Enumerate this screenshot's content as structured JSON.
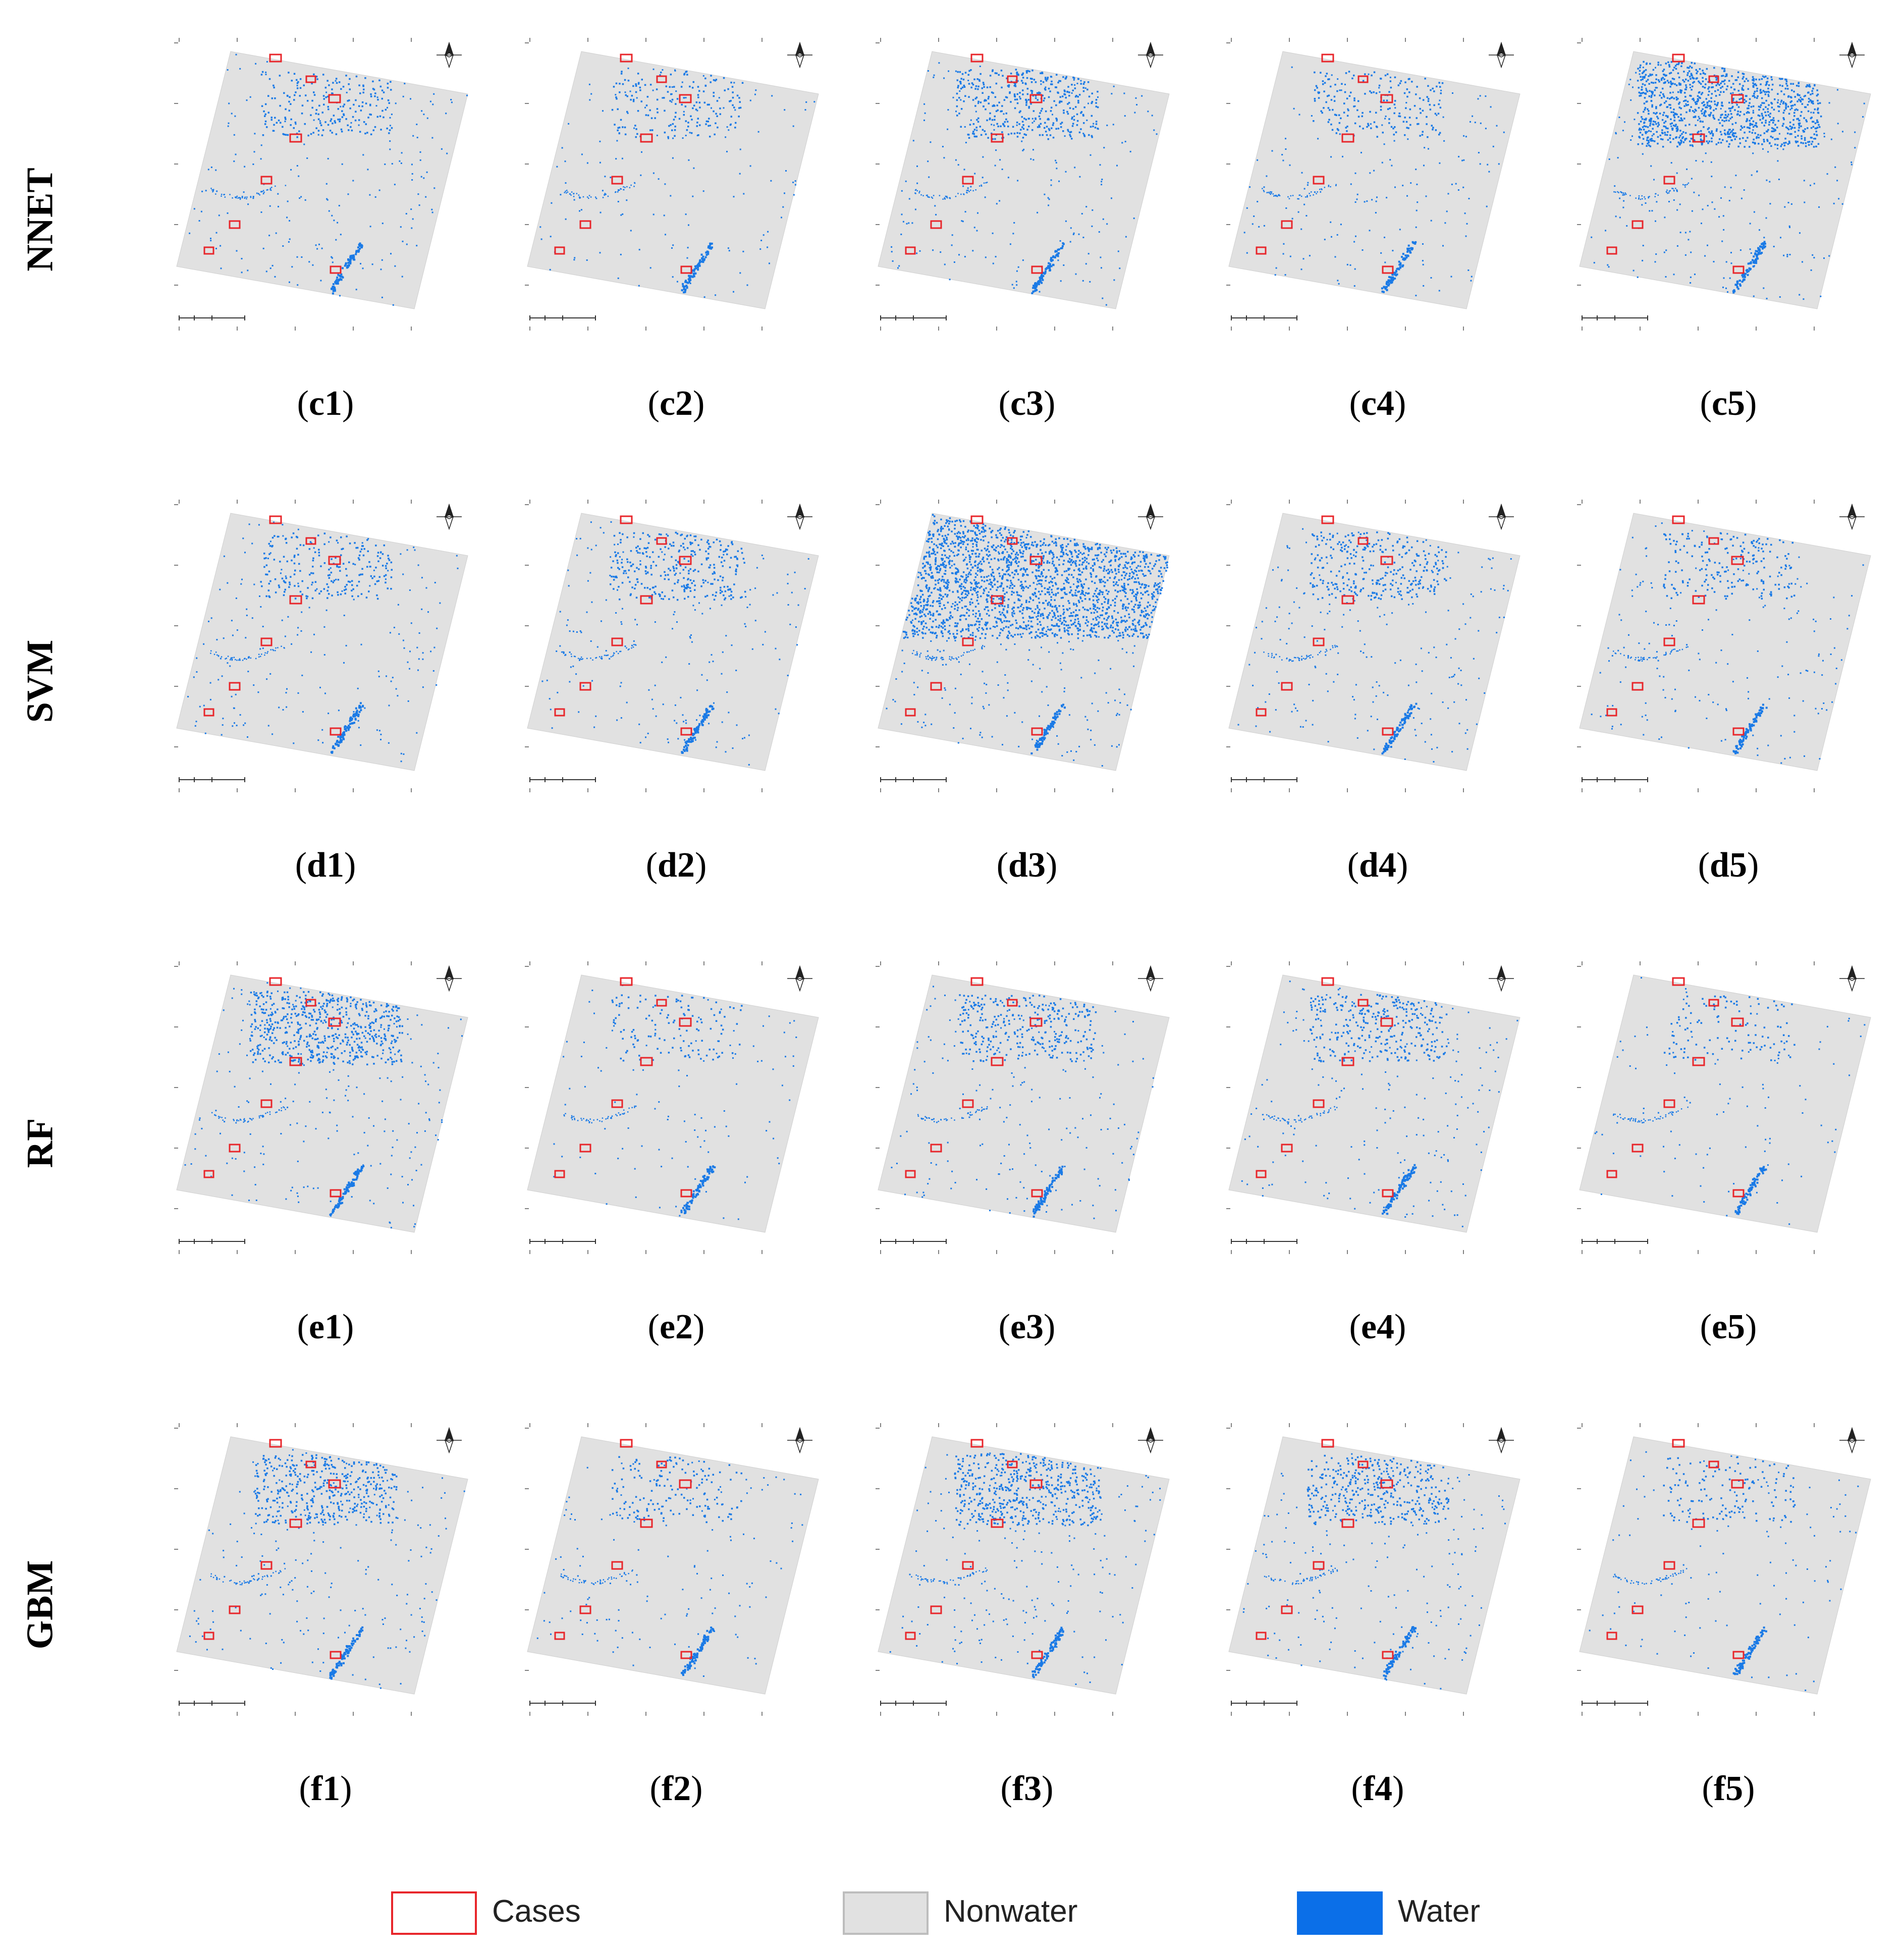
{
  "figure": {
    "rows": [
      {
        "method": "NNET",
        "panels": [
          {
            "label": "c1",
            "density": 1.0,
            "north_extra": 0
          },
          {
            "label": "c2",
            "density": 0.8,
            "north_extra": 0
          },
          {
            "label": "c3",
            "density": 1.1,
            "north_extra": 0.2
          },
          {
            "label": "c4",
            "density": 0.9,
            "north_extra": 0
          },
          {
            "label": "c5",
            "density": 1.2,
            "north_extra": 1.0
          }
        ]
      },
      {
        "method": "SVM",
        "panels": [
          {
            "label": "d1",
            "density": 1.0,
            "north_extra": 0
          },
          {
            "label": "d2",
            "density": 1.0,
            "north_extra": 0.1
          },
          {
            "label": "d3",
            "density": 1.3,
            "north_extra": 4.0
          },
          {
            "label": "d4",
            "density": 1.0,
            "north_extra": 0.1
          },
          {
            "label": "d5",
            "density": 0.9,
            "north_extra": 0
          }
        ]
      },
      {
        "method": "RF",
        "panels": [
          {
            "label": "e1",
            "density": 1.2,
            "north_extra": 0.4
          },
          {
            "label": "e2",
            "density": 0.6,
            "north_extra": 0
          },
          {
            "label": "e3",
            "density": 1.0,
            "north_extra": 0.1
          },
          {
            "label": "e4",
            "density": 1.0,
            "north_extra": 0.1
          },
          {
            "label": "e5",
            "density": 0.5,
            "north_extra": 0
          }
        ]
      },
      {
        "method": "GBM",
        "panels": [
          {
            "label": "f1",
            "density": 1.1,
            "north_extra": 0.2
          },
          {
            "label": "f2",
            "density": 0.7,
            "north_extra": 0
          },
          {
            "label": "f3",
            "density": 1.1,
            "north_extra": 0.3
          },
          {
            "label": "f4",
            "density": 1.0,
            "north_extra": 0.2
          },
          {
            "label": "f5",
            "density": 0.6,
            "north_extra": 0
          }
        ]
      }
    ]
  },
  "legend": {
    "items": [
      {
        "name": "cases",
        "label": "Cases",
        "fill": "#ffffff",
        "stroke": "#e8262b"
      },
      {
        "name": "nonwater",
        "label": "Nonwater",
        "fill": "#e1e1e1",
        "stroke": "#bdbdbd"
      },
      {
        "name": "water",
        "label": "Water",
        "fill": "#0b6fe8",
        "stroke": "#0b6fe8"
      }
    ]
  },
  "colors": {
    "nonwater": "#e1e1e1",
    "water": "#1a7ae6",
    "cases": "#e8262b",
    "frame": "#555555"
  }
}
